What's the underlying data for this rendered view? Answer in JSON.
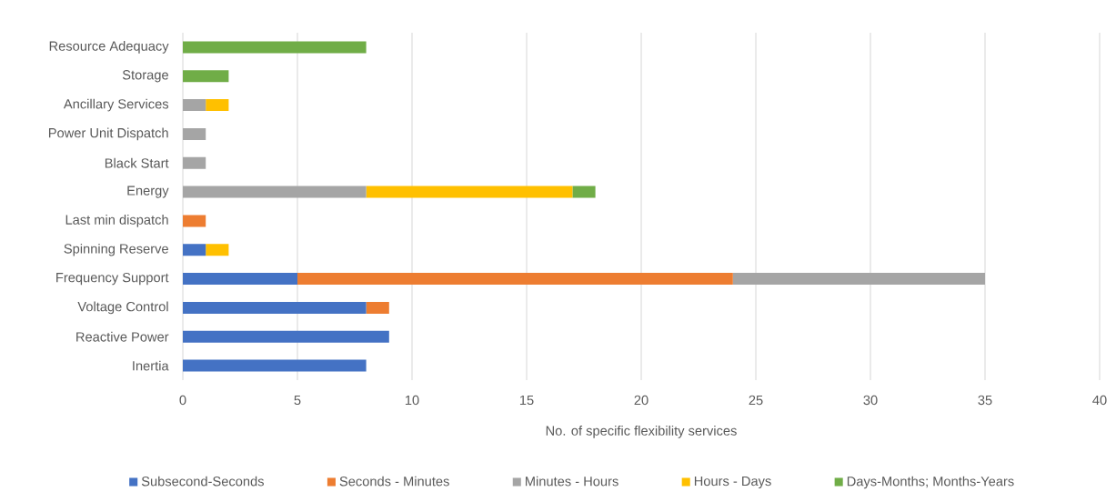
{
  "chart_data": {
    "type": "bar",
    "orientation": "horizontal",
    "stacked": true,
    "categories": [
      "Resource Adequacy",
      "Storage",
      "Ancillary Services",
      "Power Unit Dispatch",
      "Black Start",
      "Energy",
      "Last min dispatch",
      "Spinning Reserve",
      "Frequency Support",
      "Voltage Control",
      "Reactive Power",
      "Inertia"
    ],
    "series": [
      {
        "name": "Subsecond-Seconds",
        "color": "#4472c4",
        "values": [
          null,
          null,
          null,
          null,
          null,
          null,
          null,
          1,
          5,
          8,
          9,
          8
        ]
      },
      {
        "name": "Seconds - Minutes",
        "color": "#ed7d31",
        "values": [
          null,
          null,
          null,
          null,
          null,
          null,
          1,
          null,
          19,
          1,
          null,
          null
        ]
      },
      {
        "name": "Minutes - Hours",
        "color": "#a5a5a5",
        "values": [
          null,
          null,
          1,
          1,
          1,
          8,
          null,
          null,
          11,
          null,
          null,
          null
        ]
      },
      {
        "name": "Hours - Days",
        "color": "#ffc000",
        "values": [
          null,
          null,
          1,
          null,
          null,
          9,
          null,
          1,
          null,
          null,
          null,
          null
        ]
      },
      {
        "name": "Days-Months; Months-Years",
        "color": "#70ad47",
        "values": [
          8,
          2,
          null,
          null,
          null,
          1,
          null,
          null,
          null,
          null,
          null,
          null
        ]
      }
    ],
    "xlabel": "No. of specific flexibility services",
    "xlim": [
      0,
      40
    ],
    "xticks": [
      0,
      5,
      10,
      15,
      20,
      25,
      30,
      35,
      40
    ],
    "grid": "x",
    "legend": "bottom"
  }
}
